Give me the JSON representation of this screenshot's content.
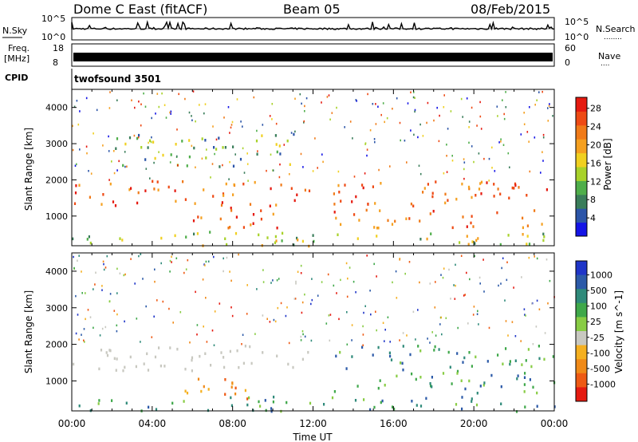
{
  "header": {
    "station": "Dome C East (fitACF)",
    "beam": "Beam 05",
    "date": "08/Feb/2015"
  },
  "nsky": {
    "label": "N.Sky",
    "ticks_left": [
      "10^5",
      "10^0"
    ],
    "ticks_right": [
      "10^5",
      "10^0"
    ],
    "right_label": "N.Search",
    "right_marker": "........"
  },
  "freq": {
    "label_line1": "Freq.",
    "label_line2": "[MHz]",
    "ticks_left": [
      "18",
      "8"
    ],
    "ticks_right": [
      "60",
      "0"
    ],
    "right_label": "Nave",
    "right_marker": "...."
  },
  "cpid": {
    "label": "CPID",
    "value": "twofsound 3501"
  },
  "axes": {
    "ylabel": "Slant Range [km]",
    "y_ticks": [
      "1000",
      "2000",
      "3000",
      "4000"
    ],
    "x_ticks": [
      "00:00",
      "04:00",
      "08:00",
      "12:00",
      "16:00",
      "20:00",
      "00:00"
    ],
    "xlabel": "Time UT"
  },
  "colors": {
    "power_scale": [
      "#1414e6",
      "#2c55a8",
      "#3a7d5a",
      "#4fae4a",
      "#a8d22a",
      "#f0d020",
      "#f5a020",
      "#f07a18",
      "#ee4a14",
      "#e51a10"
    ],
    "velocity_scale": [
      "#1f35c8",
      "#2c5aa8",
      "#2f8a7a",
      "#3fa84a",
      "#88cc44",
      "#c8c8c0",
      "#f5b020",
      "#f08a18",
      "#ee5a14",
      "#e51a10"
    ]
  },
  "chart_data": [
    {
      "type": "heatmap",
      "title": "Power",
      "colorbar_label": "Power [dB]",
      "colorbar_ticks": [
        "4",
        "8",
        "12",
        "16",
        "20",
        "24",
        "28"
      ],
      "value_range": [
        0,
        30
      ],
      "x_range": [
        "00:00",
        "24:00"
      ],
      "y_range": [
        180,
        4500
      ],
      "bands": [
        {
          "t_start": 0.0,
          "t_end": 11.8,
          "range_low": 1300,
          "range_high": 2000,
          "level": "high"
        },
        {
          "t_start": 6.0,
          "t_end": 10.5,
          "range_low": 700,
          "range_high": 1400,
          "level": "high"
        },
        {
          "t_start": 13.0,
          "t_end": 24.0,
          "range_low": 700,
          "range_high": 2000,
          "level": "high"
        },
        {
          "t_start": 0.0,
          "t_end": 24.0,
          "range_low": 200,
          "range_high": 600,
          "level": "medium"
        },
        {
          "t_start": 2.0,
          "t_end": 11.0,
          "range_low": 2400,
          "range_high": 3300,
          "level": "low"
        }
      ]
    },
    {
      "type": "heatmap",
      "title": "Velocity",
      "colorbar_label": "Velocity [m s^-1]",
      "colorbar_ticks": [
        "1000",
        "500",
        "100",
        "25",
        "-25",
        "-100",
        "-500",
        "-1000"
      ],
      "value_range": [
        -1000,
        1000
      ],
      "x_range": [
        "00:00",
        "24:00"
      ],
      "y_range": [
        180,
        4500
      ],
      "bands": [
        {
          "t_start": 0.0,
          "t_end": 11.8,
          "range_low": 1300,
          "range_high": 2000,
          "level": "near-zero"
        },
        {
          "t_start": 5.5,
          "t_end": 10.0,
          "range_low": 500,
          "range_high": 1100,
          "level": "negative"
        },
        {
          "t_start": 13.0,
          "t_end": 24.0,
          "range_low": 700,
          "range_high": 2000,
          "level": "positive"
        },
        {
          "t_start": 0.0,
          "t_end": 24.0,
          "range_low": 200,
          "range_high": 600,
          "level": "positive"
        }
      ]
    }
  ]
}
